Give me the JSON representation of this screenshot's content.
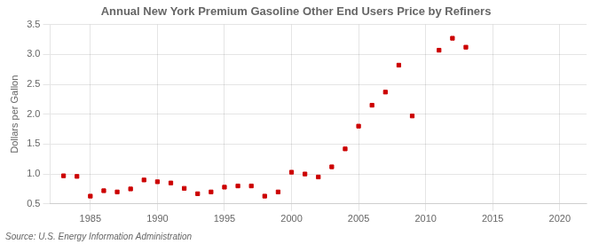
{
  "chart_data": {
    "type": "scatter",
    "title": "Annual New York Premium Gasoline Other End Users Price by Refiners",
    "ylabel": "Dollars per Gallon",
    "annotations": [
      "Source: U.S. Energy Information Administration"
    ],
    "x": [
      1983,
      1984,
      1985,
      1986,
      1987,
      1988,
      1989,
      1990,
      1991,
      1992,
      1993,
      1994,
      1995,
      1996,
      1997,
      1998,
      1999,
      2000,
      2001,
      2002,
      2003,
      2004,
      2005,
      2006,
      2007,
      2008,
      2009,
      2011,
      2012,
      2013
    ],
    "values": [
      0.97,
      0.96,
      0.63,
      0.72,
      0.7,
      0.75,
      0.9,
      0.87,
      0.85,
      0.76,
      0.67,
      0.7,
      0.78,
      0.8,
      0.8,
      0.63,
      0.7,
      1.03,
      1.0,
      0.95,
      1.12,
      1.42,
      1.8,
      2.15,
      2.37,
      2.82,
      1.97,
      3.07,
      3.27,
      3.12
    ],
    "color": "#cc0000",
    "marker": "square",
    "xlim": [
      1982,
      2022
    ],
    "ylim": [
      0.5,
      3.5
    ],
    "xticks": [
      1985,
      1990,
      1995,
      2000,
      2005,
      2010,
      2015,
      2020
    ],
    "yticks": [
      0.5,
      {
        "value": 1.0,
        "label": "1.0"
      },
      1.5,
      {
        "value": 2.0,
        "label": "2.0"
      },
      2.5,
      {
        "value": 3.0,
        "label": "3.0"
      },
      3.5
    ],
    "grid": true
  }
}
